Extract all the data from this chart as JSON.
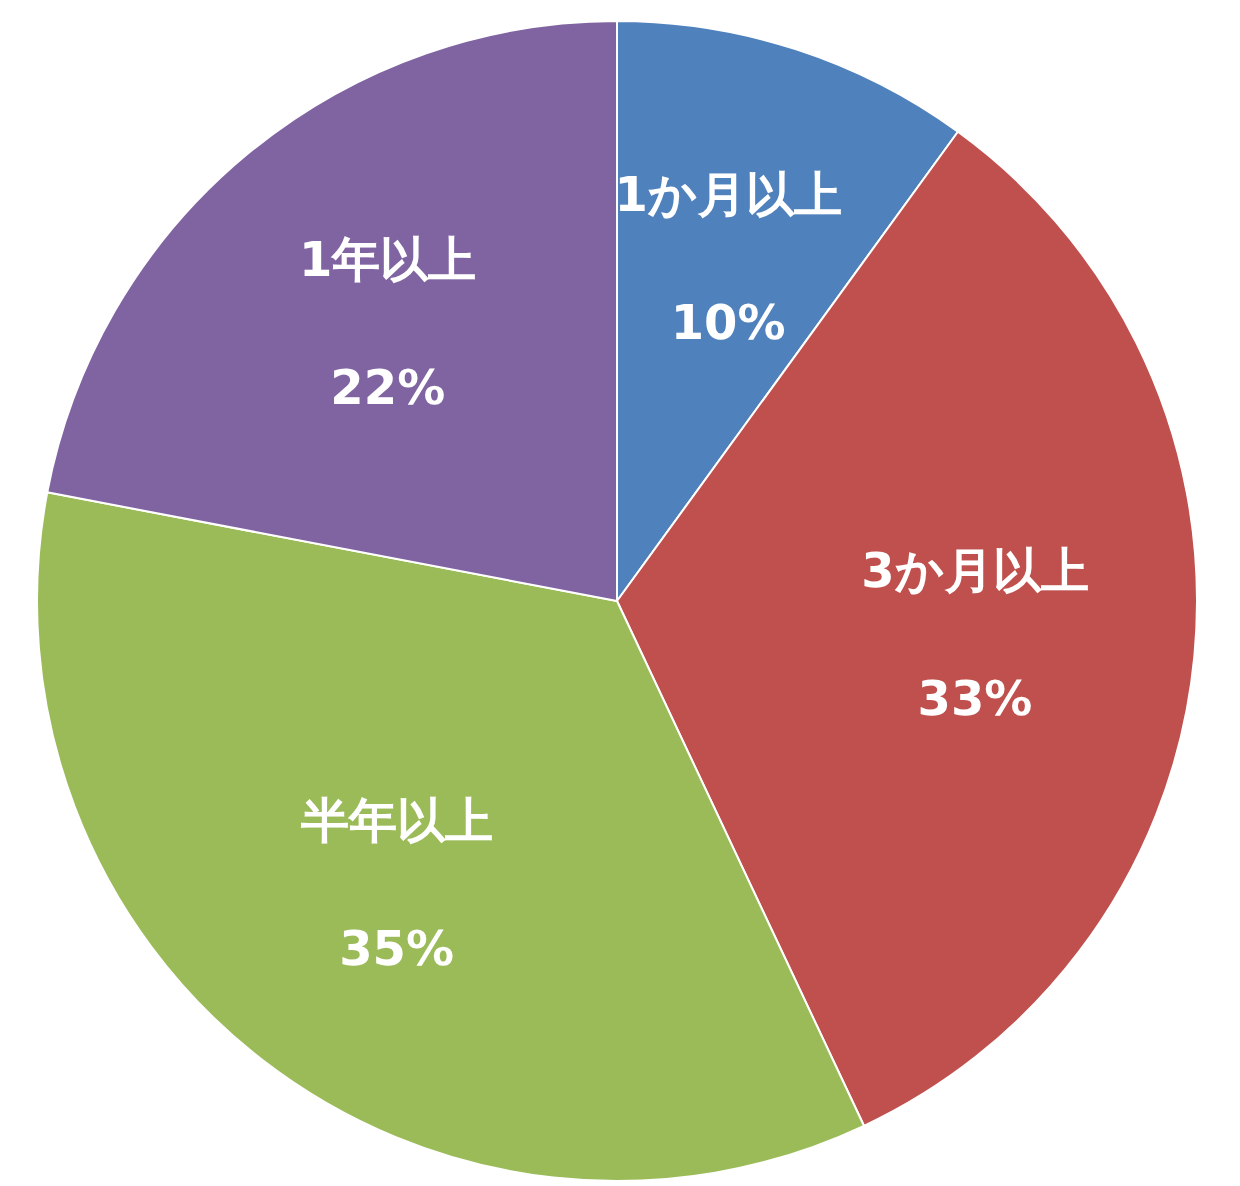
{
  "chart_data": {
    "type": "pie",
    "categories": [
      "1か月以上",
      "3か月以上",
      "半年以上",
      "1年以上"
    ],
    "values": [
      10,
      33,
      35,
      22
    ],
    "value_labels": [
      "10%",
      "33%",
      "35%",
      "22%"
    ],
    "colors": [
      "#4f81bd",
      "#c0504d",
      "#9bbb59",
      "#8064a2"
    ]
  }
}
